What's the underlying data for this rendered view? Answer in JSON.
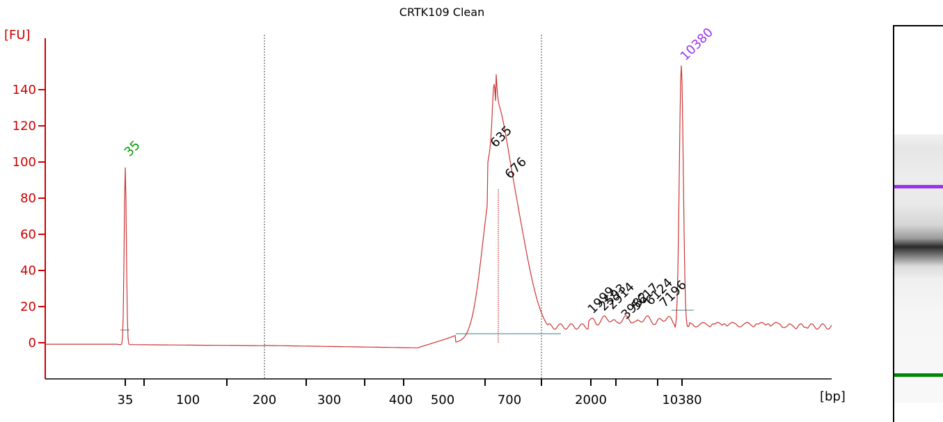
{
  "chart_data": {
    "type": "line",
    "title": "CRTK109 Clean",
    "ylabel": "[FU]",
    "xlabel": "[bp]",
    "ylim": [
      -20,
      160
    ],
    "yticks": [
      0,
      20,
      40,
      60,
      80,
      100,
      120,
      140
    ],
    "xtick_labels": [
      "35",
      "100",
      "200",
      "300",
      "400",
      "500",
      "700",
      "2000",
      "10380"
    ],
    "grid": false,
    "series": [
      {
        "color": "#cc3333",
        "points": [
          [
            35,
            0
          ],
          [
            35,
            97
          ],
          [
            35,
            -1
          ],
          [
            200,
            -1.5
          ],
          [
            300,
            -2
          ],
          [
            400,
            -3
          ],
          [
            500,
            -2
          ],
          [
            560,
            20
          ],
          [
            620,
            80
          ],
          [
            635,
            104
          ],
          [
            645,
            83
          ],
          [
            676,
            88
          ],
          [
            720,
            60
          ],
          [
            800,
            20
          ],
          [
            900,
            10
          ],
          [
            1999,
            10
          ],
          [
            2593,
            11
          ],
          [
            3982,
            12
          ],
          [
            7196,
            13
          ],
          [
            9000,
            17
          ],
          [
            10380,
            152
          ],
          [
            11000,
            12
          ],
          [
            12000,
            10
          ]
        ]
      }
    ],
    "peak_labels": [
      {
        "label": "35",
        "color": "#009900"
      },
      {
        "label": "635",
        "color": "#000000"
      },
      {
        "label": "676",
        "color": "#000000"
      },
      {
        "label": "1999",
        "color": "#000000"
      },
      {
        "label": "2593",
        "color": "#000000"
      },
      {
        "label": "2914",
        "color": "#000000"
      },
      {
        "label": "3982",
        "color": "#000000"
      },
      {
        "label": "5617",
        "color": "#000000"
      },
      {
        "label": "6124",
        "color": "#000000"
      },
      {
        "label": "7196",
        "color": "#000000"
      },
      {
        "label": "10380",
        "color": "#9933ee"
      }
    ],
    "gel_bands": [
      {
        "marker": "upper",
        "color": "#9933ee"
      },
      {
        "marker": "lower",
        "color": "#008800"
      }
    ]
  }
}
